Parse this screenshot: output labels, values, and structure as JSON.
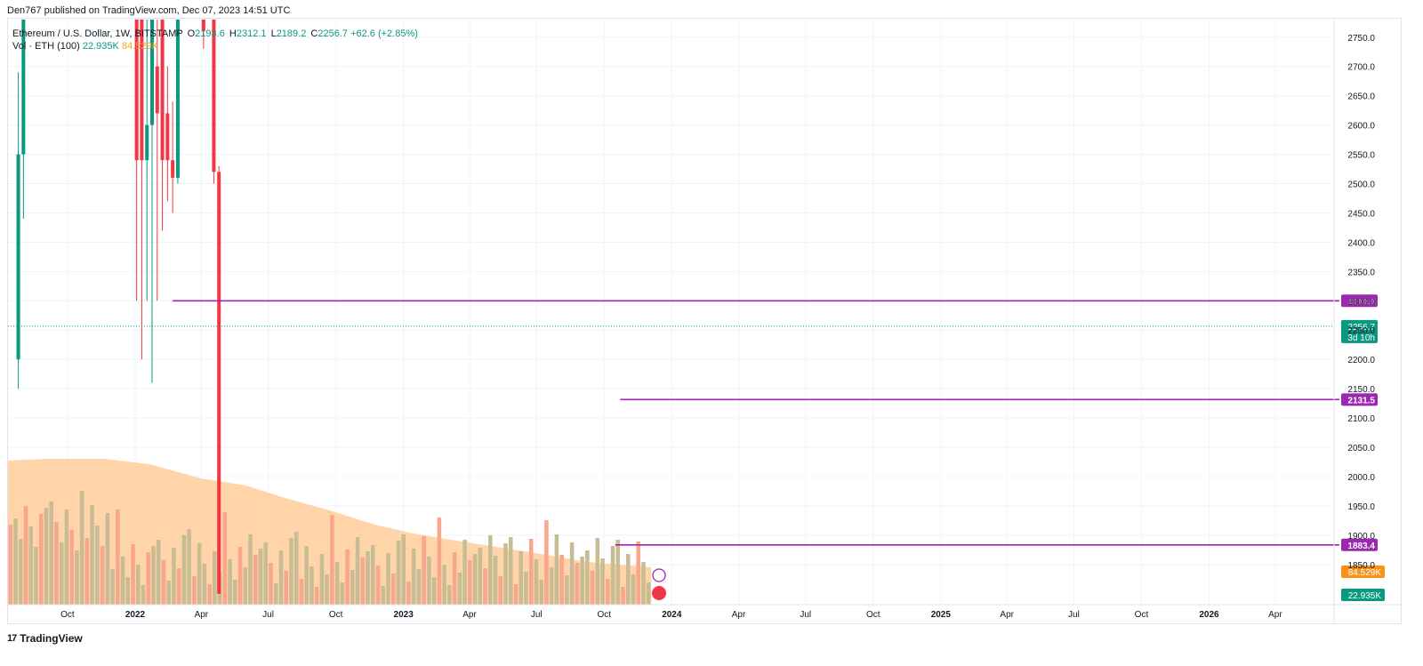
{
  "header": {
    "published": "Den767 published on TradingView.com, Dec 07, 2023 14:51 UTC"
  },
  "legend": {
    "symbol": "Ethereum / U.S. Dollar, 1W, BITSTAMP",
    "open_label": "O",
    "open": "2193.6",
    "high_label": "H",
    "high": "2312.1",
    "low_label": "L",
    "low": "2189.2",
    "close_label": "C",
    "close": "2256.7",
    "change": "+62.6 (+2.85%)",
    "vol_label": "Vol · ETH (100)",
    "vol_value": "22.935K",
    "vol_ma": "84.529K"
  },
  "footer": {
    "brand": "TradingView"
  },
  "colors": {
    "up": "#089981",
    "down": "#f23645",
    "level": "#9c27b0",
    "vol_ma_fill": "#ffcc99",
    "vol_up": "#c8bc94",
    "vol_down": "#f8a68c"
  },
  "chart_data": {
    "type": "candlestick",
    "symbol": "Ethereum / U.S. Dollar",
    "interval": "1W",
    "exchange": "BITSTAMP",
    "ylim": [
      1830,
      2780
    ],
    "y_ticks": [
      1850,
      1900,
      1950,
      2000,
      2050,
      2100,
      2150,
      2200,
      2250,
      2300,
      2350,
      2400,
      2450,
      2500,
      2550,
      2600,
      2650,
      2700,
      2750
    ],
    "x_ticks": [
      {
        "label": "Oct",
        "date": "2021-10-01",
        "bold": false
      },
      {
        "label": "2022",
        "date": "2022-01-01",
        "bold": true
      },
      {
        "label": "Apr",
        "date": "2022-04-01",
        "bold": false
      },
      {
        "label": "Jul",
        "date": "2022-07-01",
        "bold": false
      },
      {
        "label": "Oct",
        "date": "2022-10-01",
        "bold": false
      },
      {
        "label": "2023",
        "date": "2023-01-01",
        "bold": true
      },
      {
        "label": "Apr",
        "date": "2023-04-01",
        "bold": false
      },
      {
        "label": "Jul",
        "date": "2023-07-01",
        "bold": false
      },
      {
        "label": "Oct",
        "date": "2023-10-01",
        "bold": false
      },
      {
        "label": "2024",
        "date": "2024-01-01",
        "bold": true
      },
      {
        "label": "Apr",
        "date": "2024-04-01",
        "bold": false
      },
      {
        "label": "Jul",
        "date": "2024-07-01",
        "bold": false
      },
      {
        "label": "Oct",
        "date": "2024-10-01",
        "bold": false
      },
      {
        "label": "2025",
        "date": "2025-01-01",
        "bold": true
      },
      {
        "label": "Apr",
        "date": "2025-04-01",
        "bold": false
      },
      {
        "label": "Jul",
        "date": "2025-07-01",
        "bold": false
      },
      {
        "label": "Oct",
        "date": "2025-10-01",
        "bold": false
      },
      {
        "label": "2026",
        "date": "2026-01-01",
        "bold": true
      },
      {
        "label": "Apr",
        "date": "2026-04-01",
        "bold": false
      }
    ],
    "candles": [
      {
        "date": "2021-07-26",
        "o": 2200,
        "h": 2690,
        "l": 2150,
        "c": 2550
      },
      {
        "date": "2021-08-02",
        "o": 2550,
        "h": 3000,
        "l": 2440,
        "c": 3000
      },
      {
        "date": "2022-01-03",
        "o": 3000,
        "h": 3100,
        "l": 2300,
        "c": 2540
      },
      {
        "date": "2022-01-10",
        "o": 3000,
        "h": 3100,
        "l": 2200,
        "c": 2540
      },
      {
        "date": "2022-01-17",
        "o": 2540,
        "h": 3000,
        "l": 2300,
        "c": 2600
      },
      {
        "date": "2022-01-24",
        "o": 2600,
        "h": 3000,
        "l": 2160,
        "c": 3000
      },
      {
        "date": "2022-01-31",
        "o": 2700,
        "h": 3000,
        "l": 2300,
        "c": 2620
      },
      {
        "date": "2022-02-07",
        "o": 3000,
        "h": 3200,
        "l": 2420,
        "c": 2540
      },
      {
        "date": "2022-02-14",
        "o": 2620,
        "h": 2700,
        "l": 2470,
        "c": 2540
      },
      {
        "date": "2022-02-21",
        "o": 2540,
        "h": 2640,
        "l": 2450,
        "c": 2510
      },
      {
        "date": "2022-02-28",
        "o": 2510,
        "h": 3000,
        "l": 2500,
        "c": 3000
      },
      {
        "date": "2022-04-04",
        "o": 3000,
        "h": 3100,
        "l": 2730,
        "c": 2760
      },
      {
        "date": "2022-04-18",
        "o": 3000,
        "h": 3100,
        "l": 2500,
        "c": 2520
      },
      {
        "date": "2022-04-25",
        "o": 2520,
        "h": 2530,
        "l": 1800,
        "c": 1800
      }
    ],
    "horizontal_levels": [
      2300.0,
      2131.5,
      1883.4
    ],
    "last_price": 2256.7,
    "countdown": "3d 10h",
    "volume": {
      "last": "22.935K",
      "ma": "84.529K",
      "ma_period": 100
    },
    "grid": true,
    "price_axis": "right"
  }
}
